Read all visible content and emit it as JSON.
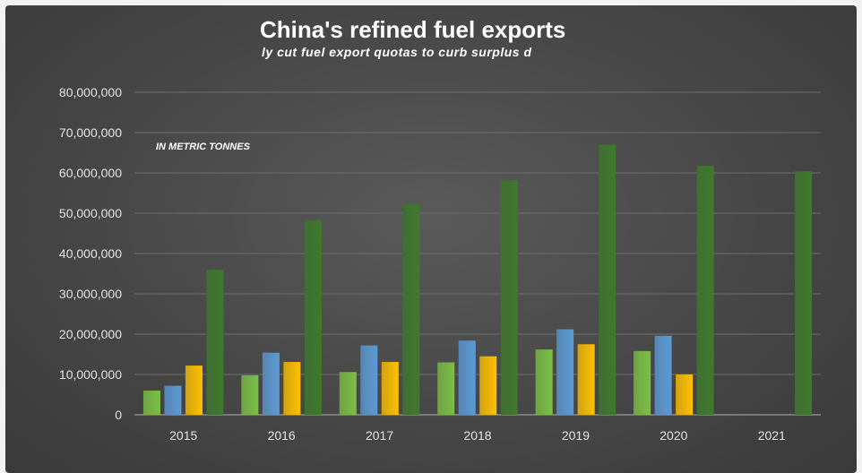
{
  "chart_data": {
    "type": "bar",
    "title": "China's refined fuel exports",
    "subtitle": "ly cut fuel export quotas to curb surplus d",
    "annotation": "IN METRIC TONNES",
    "categories": [
      "2015",
      "2016",
      "2017",
      "2018",
      "2019",
      "2020",
      "2021"
    ],
    "ylim": [
      0,
      80000000
    ],
    "yticks": [
      0,
      10000000,
      20000000,
      30000000,
      40000000,
      50000000,
      60000000,
      70000000,
      80000000
    ],
    "ytick_labels": [
      "0",
      "10,000,000",
      "20,000,000",
      "30,000,000",
      "40,000,000",
      "50,000,000",
      "60,000,000",
      "70,000,000",
      "80,000,000"
    ],
    "grid": true,
    "series": [
      {
        "color": "#7bc043",
        "values": [
          6000000,
          9800000,
          10600000,
          13000000,
          16200000,
          15800000,
          null
        ]
      },
      {
        "color": "#5b9bd5",
        "values": [
          7200000,
          15400000,
          17200000,
          18400000,
          21200000,
          19600000,
          null
        ]
      },
      {
        "color": "#ffc000",
        "values": [
          12200000,
          13100000,
          13100000,
          14500000,
          17500000,
          10000000,
          null
        ]
      },
      {
        "color": "#3e7a2c",
        "values": [
          36000000,
          48200000,
          52400000,
          58200000,
          67000000,
          61800000,
          60400000
        ]
      }
    ]
  }
}
